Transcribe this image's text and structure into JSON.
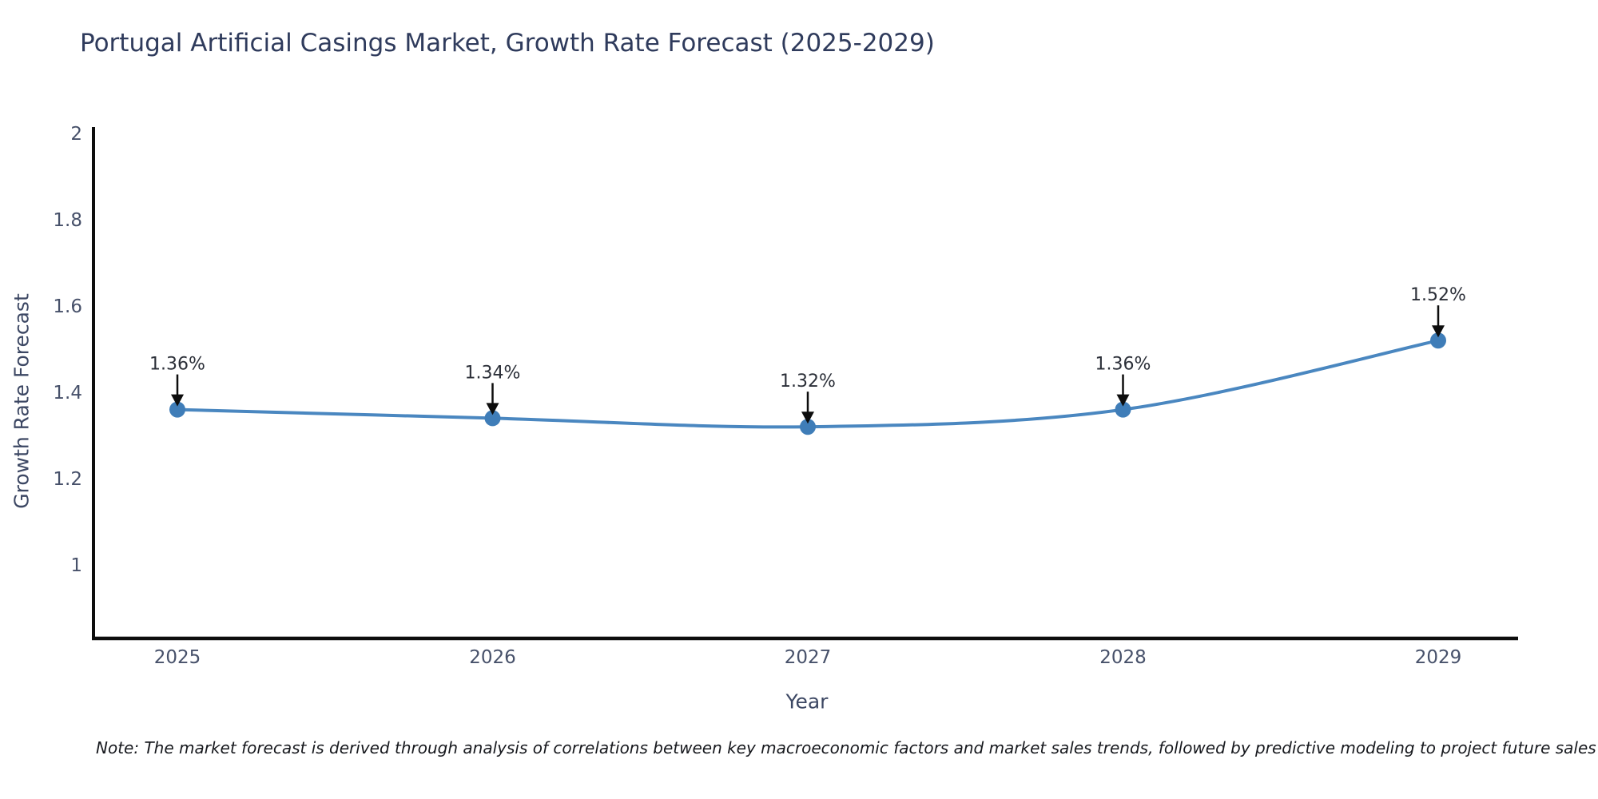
{
  "title": "Portugal Artificial Casings Market, Growth Rate Forecast (2025-2029)",
  "note": "Note: The market forecast is derived through analysis of correlations between key macroeconomic factors and market sales trends, followed by predictive modeling to project future sales",
  "chart_data": {
    "type": "line",
    "title": "Portugal Artificial Casings Market, Growth Rate Forecast (2025-2029)",
    "xlabel": "Year",
    "ylabel": "Growth Rate Forecast",
    "x": [
      2025,
      2026,
      2027,
      2028,
      2029
    ],
    "values": [
      1.36,
      1.34,
      1.32,
      1.36,
      1.52
    ],
    "point_labels": [
      "1.36%",
      "1.34%",
      "1.32%",
      "1.36%",
      "1.52%"
    ],
    "yticks": [
      2,
      1.8,
      1.6,
      1.4,
      1.2,
      1
    ],
    "ylim": [
      0.83,
      2.08
    ],
    "grid": false,
    "legend": "none",
    "annotations_style": "black down-arrow from label to marker",
    "colors": {
      "line": "#4a87c0",
      "marker": "#3f7db8",
      "axis": "#0d0d0d",
      "arrow": "#0d0d0d",
      "annotation_text": "#2b2f38",
      "tick_text": "#47516a",
      "title_text": "#2f3b5c",
      "background": "#ffffff"
    }
  }
}
